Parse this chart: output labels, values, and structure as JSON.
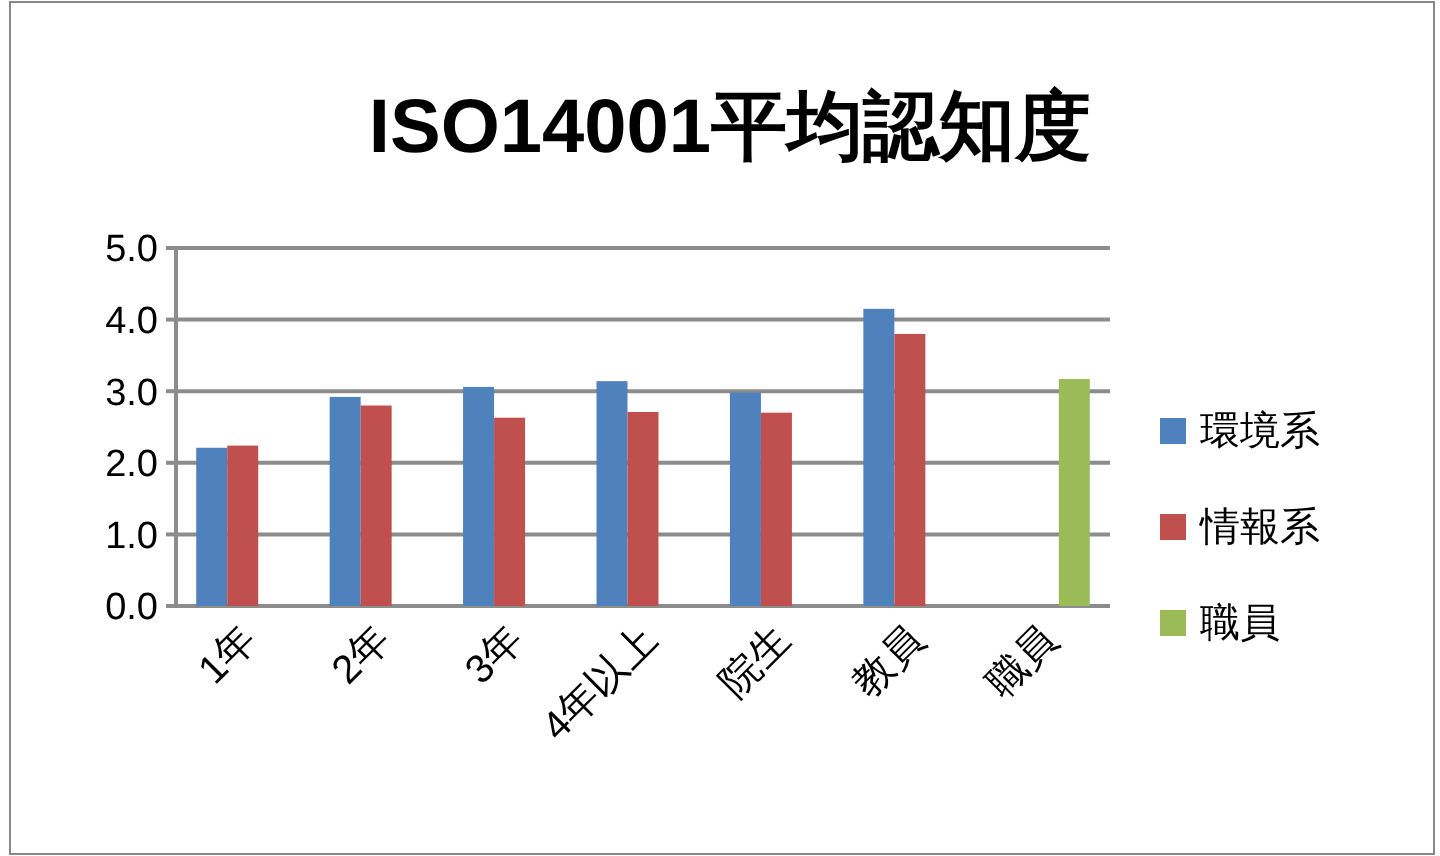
{
  "chart_data": {
    "type": "bar",
    "title": "ISO14001平均認知度",
    "categories": [
      "1年",
      "2年",
      "3年",
      "4年以上",
      "院生",
      "教員",
      "職員"
    ],
    "series": [
      {
        "name": "環境系",
        "color": "#4f81bd",
        "values": [
          2.21,
          2.92,
          3.06,
          3.14,
          2.98,
          4.15,
          null
        ]
      },
      {
        "name": "情報系",
        "color": "#c0504d",
        "values": [
          2.24,
          2.8,
          2.63,
          2.71,
          2.7,
          3.8,
          null
        ]
      },
      {
        "name": "職員",
        "color": "#9bbb59",
        "values": [
          null,
          null,
          null,
          null,
          null,
          null,
          3.17
        ]
      }
    ],
    "ylim": [
      0,
      5
    ],
    "yticks": [
      {
        "value": 0,
        "label": "0.0"
      },
      {
        "value": 1,
        "label": "1.0"
      },
      {
        "value": 2,
        "label": "2.0"
      },
      {
        "value": 3,
        "label": "3.0"
      },
      {
        "value": 4,
        "label": "4.0"
      },
      {
        "value": 5,
        "label": "5.0"
      }
    ],
    "grid": "y",
    "legend": "right"
  }
}
